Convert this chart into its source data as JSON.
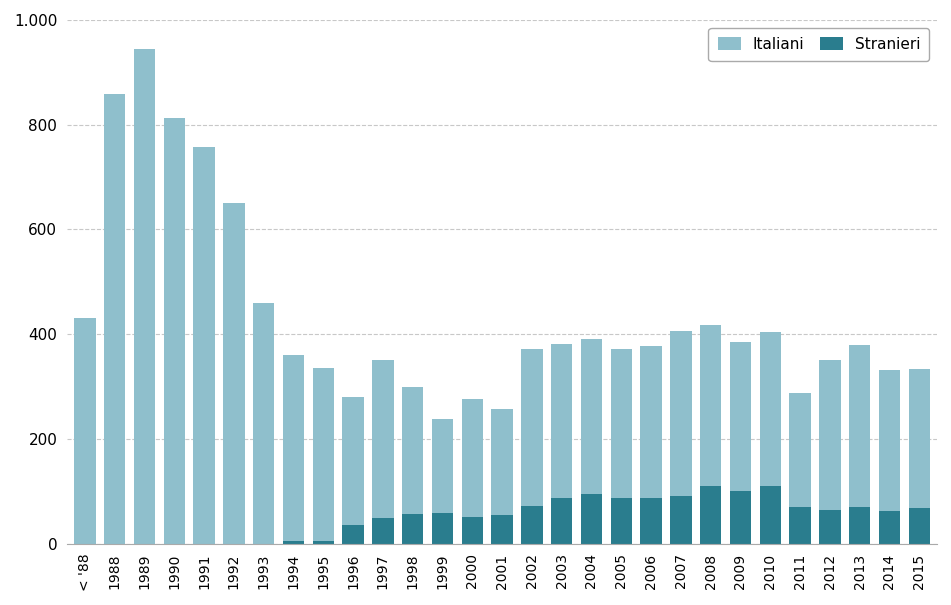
{
  "categories": [
    "< '88",
    "1988",
    "1989",
    "1990",
    "1991",
    "1992",
    "1993",
    "1994",
    "1995",
    "1996",
    "1997",
    "1998",
    "1999",
    "2000",
    "2001",
    "2002",
    "2003",
    "2004",
    "2005",
    "2006",
    "2007",
    "2008",
    "2009",
    "2010",
    "2011",
    "2012",
    "2013",
    "2014",
    "2015"
  ],
  "italiani": [
    430,
    858,
    945,
    812,
    757,
    650,
    460,
    355,
    330,
    245,
    300,
    242,
    180,
    225,
    202,
    300,
    295,
    295,
    285,
    290,
    315,
    308,
    285,
    295,
    218,
    285,
    310,
    270,
    265
  ],
  "stranieri": [
    0,
    0,
    0,
    0,
    0,
    0,
    0,
    5,
    5,
    35,
    50,
    57,
    58,
    52,
    55,
    72,
    87,
    95,
    87,
    88,
    92,
    110,
    100,
    110,
    70,
    65,
    70,
    62,
    68
  ],
  "color_italiani": "#8fbfcc",
  "color_stranieri": "#2a7d8e",
  "ylim": [
    0,
    1000
  ],
  "yticks": [
    0,
    200,
    400,
    600,
    800,
    1000
  ],
  "ytick_labels": [
    "0",
    "200",
    "400",
    "600",
    "800",
    "1.000"
  ],
  "legend_labels": [
    "Italiani",
    "Stranieri"
  ],
  "background_color": "#ffffff",
  "grid_color": "#c8c8c8"
}
